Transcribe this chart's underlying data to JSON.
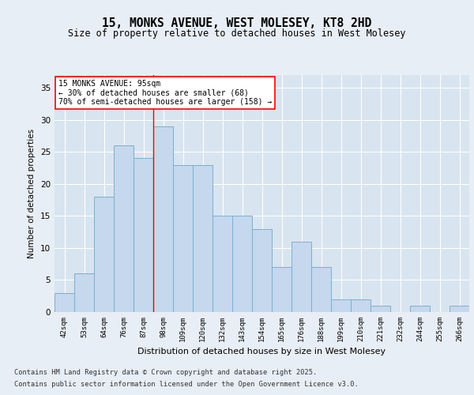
{
  "title_line1": "15, MONKS AVENUE, WEST MOLESEY, KT8 2HD",
  "title_line2": "Size of property relative to detached houses in West Molesey",
  "xlabel": "Distribution of detached houses by size in West Molesey",
  "ylabel": "Number of detached properties",
  "categories": [
    "42sqm",
    "53sqm",
    "64sqm",
    "76sqm",
    "87sqm",
    "98sqm",
    "109sqm",
    "120sqm",
    "132sqm",
    "143sqm",
    "154sqm",
    "165sqm",
    "176sqm",
    "188sqm",
    "199sqm",
    "210sqm",
    "221sqm",
    "232sqm",
    "244sqm",
    "255sqm",
    "266sqm"
  ],
  "values": [
    3,
    6,
    18,
    26,
    24,
    29,
    23,
    23,
    15,
    15,
    13,
    7,
    11,
    7,
    2,
    2,
    1,
    0,
    1,
    0,
    1
  ],
  "bar_color": "#c5d8ed",
  "bar_edge_color": "#7bafd4",
  "red_line_index": 5,
  "annotation_title": "15 MONKS AVENUE: 95sqm",
  "annotation_line1": "← 30% of detached houses are smaller (68)",
  "annotation_line2": "70% of semi-detached houses are larger (158) →",
  "ylim": [
    0,
    37
  ],
  "yticks": [
    0,
    5,
    10,
    15,
    20,
    25,
    30,
    35
  ],
  "background_color": "#e8eef5",
  "plot_background": "#d8e4f0",
  "grid_color": "#ffffff",
  "footer_line1": "Contains HM Land Registry data © Crown copyright and database right 2025.",
  "footer_line2": "Contains public sector information licensed under the Open Government Licence v3.0."
}
